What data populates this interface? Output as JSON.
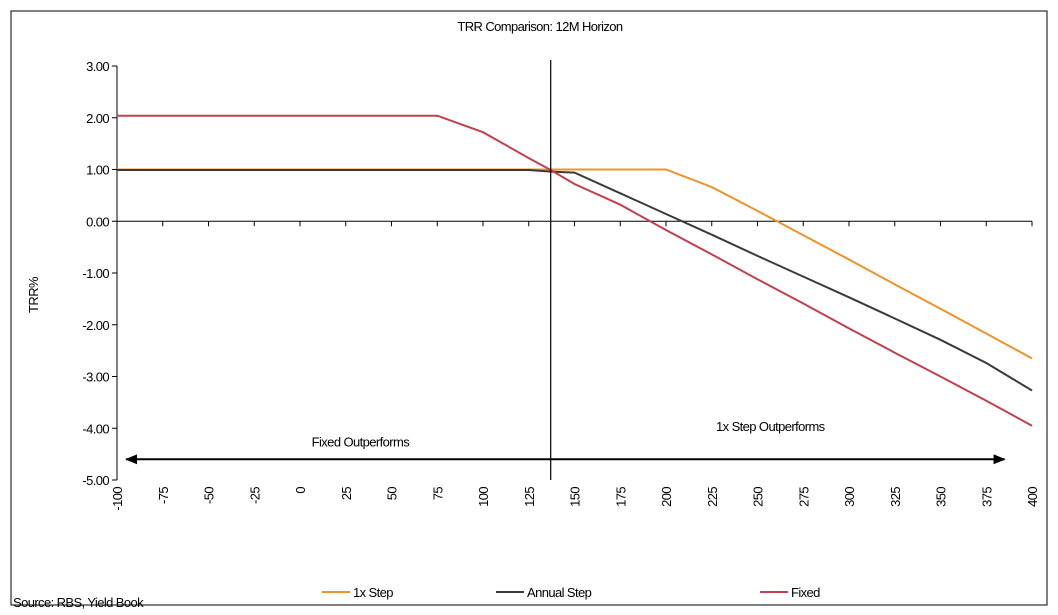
{
  "chart_data": {
    "type": "line",
    "title": "TRR Comparison: 12M Horizon",
    "ylabel": "TRR%",
    "xlabel": "",
    "ylim": [
      -5,
      3
    ],
    "xlim": [
      -100,
      400
    ],
    "y_ticks": [
      "3.00",
      "2.00",
      "1.00",
      "0.00",
      "-1.00",
      "-2.00",
      "-3.00",
      "-4.00",
      "-5.00"
    ],
    "y_tick_values": [
      3,
      2,
      1,
      0,
      -1,
      -2,
      -3,
      -4,
      -5
    ],
    "x_ticks": [
      "-100",
      "-75",
      "-50",
      "-25",
      "0",
      "25",
      "50",
      "75",
      "100",
      "125",
      "150",
      "175",
      "200",
      "225",
      "250",
      "275",
      "300",
      "325",
      "350",
      "375",
      "400"
    ],
    "x_tick_values": [
      -100,
      -75,
      -50,
      -25,
      0,
      25,
      50,
      75,
      100,
      125,
      150,
      175,
      200,
      225,
      250,
      275,
      300,
      325,
      350,
      375,
      400
    ],
    "grid": false,
    "legend_position": "bottom",
    "series": [
      {
        "name": "1x Step",
        "color": "#f0922b",
        "points": [
          [
            -100,
            1.0
          ],
          [
            -75,
            1.0
          ],
          [
            -50,
            1.0
          ],
          [
            -25,
            1.0
          ],
          [
            0,
            1.0
          ],
          [
            25,
            1.0
          ],
          [
            50,
            1.0
          ],
          [
            75,
            1.0
          ],
          [
            100,
            1.0
          ],
          [
            125,
            1.0
          ],
          [
            137,
            1.0
          ],
          [
            150,
            1.0
          ],
          [
            175,
            1.0
          ],
          [
            200,
            1.0
          ],
          [
            225,
            0.66
          ],
          [
            250,
            0.2
          ],
          [
            275,
            -0.27
          ],
          [
            300,
            -0.74
          ],
          [
            325,
            -1.22
          ],
          [
            350,
            -1.69
          ],
          [
            375,
            -2.17
          ],
          [
            400,
            -2.65
          ]
        ]
      },
      {
        "name": "Annual Step",
        "color": "#3a3a3a",
        "points": [
          [
            -100,
            0.99
          ],
          [
            -75,
            0.99
          ],
          [
            -50,
            0.99
          ],
          [
            -25,
            0.99
          ],
          [
            0,
            0.99
          ],
          [
            25,
            0.99
          ],
          [
            50,
            0.99
          ],
          [
            75,
            0.99
          ],
          [
            100,
            0.99
          ],
          [
            125,
            0.99
          ],
          [
            137,
            0.96
          ],
          [
            150,
            0.94
          ],
          [
            175,
            0.54
          ],
          [
            200,
            0.14
          ],
          [
            225,
            -0.26
          ],
          [
            250,
            -0.67
          ],
          [
            275,
            -1.07
          ],
          [
            300,
            -1.47
          ],
          [
            325,
            -1.88
          ],
          [
            350,
            -2.29
          ],
          [
            375,
            -2.74
          ],
          [
            400,
            -3.27
          ]
        ]
      },
      {
        "name": "Fixed",
        "color": "#c0404c",
        "points": [
          [
            -100,
            2.04
          ],
          [
            -75,
            2.04
          ],
          [
            -50,
            2.04
          ],
          [
            -25,
            2.04
          ],
          [
            0,
            2.04
          ],
          [
            25,
            2.04
          ],
          [
            50,
            2.04
          ],
          [
            75,
            2.04
          ],
          [
            100,
            1.72
          ],
          [
            125,
            1.22
          ],
          [
            137,
            0.99
          ],
          [
            150,
            0.72
          ],
          [
            175,
            0.32
          ],
          [
            200,
            -0.17
          ],
          [
            225,
            -0.64
          ],
          [
            250,
            -1.12
          ],
          [
            275,
            -1.59
          ],
          [
            300,
            -2.07
          ],
          [
            325,
            -2.54
          ],
          [
            350,
            -3.0
          ],
          [
            375,
            -3.47
          ],
          [
            400,
            -3.95
          ]
        ]
      }
    ],
    "divider_x": 137,
    "annotations": [
      {
        "text": "Fixed Outperforms",
        "x": 33,
        "y": -4.35
      },
      {
        "text": "1x Step Outperforms",
        "x": 257,
        "y": -4.05
      }
    ],
    "arrow": {
      "x_start": -95,
      "x_end": 385,
      "y": -4.6
    },
    "source": "Source: RBS, Yield Book"
  }
}
